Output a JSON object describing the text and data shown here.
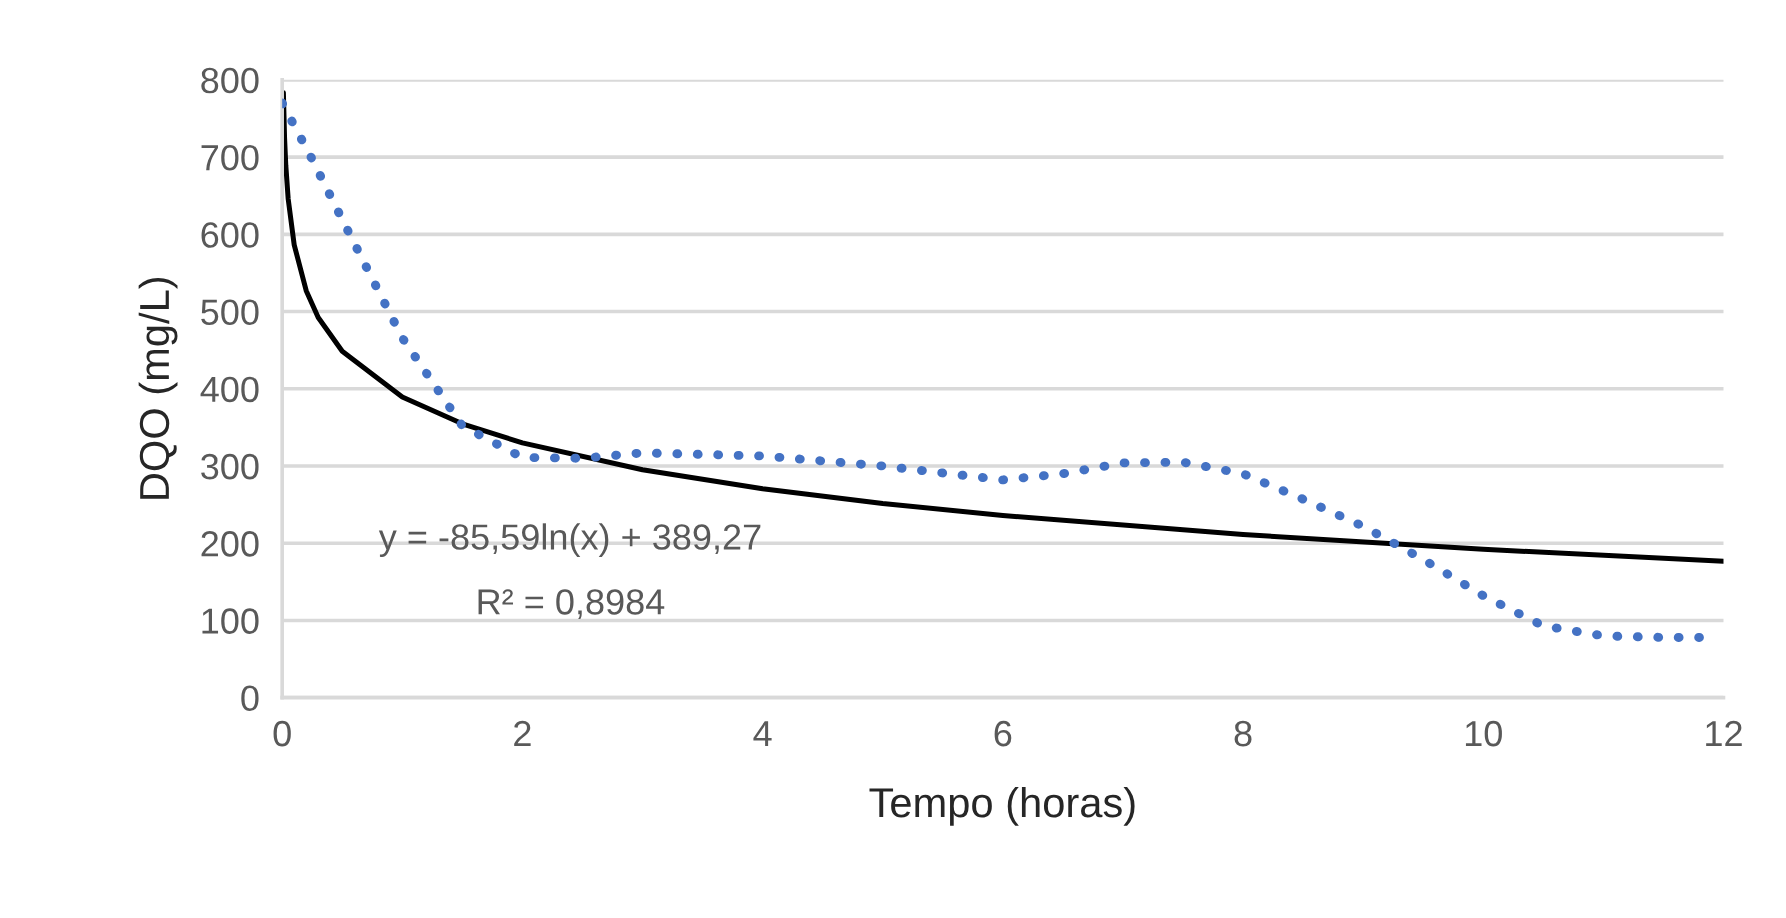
{
  "chart_data": {
    "type": "line",
    "xlabel": "Tempo (horas)",
    "ylabel": "DQO (mg/L)",
    "xlim": [
      0,
      12
    ],
    "xticks": [
      0,
      2,
      4,
      6,
      8,
      10,
      12
    ],
    "ylim": [
      0,
      800
    ],
    "yticks": [
      0,
      100,
      200,
      300,
      400,
      500,
      600,
      700,
      800
    ],
    "grid": "y",
    "legend": false,
    "series": [
      {
        "color": "#4472c4",
        "line_style": "dotted",
        "x": [
          0,
          0.25,
          0.5,
          1,
          1.5,
          2,
          2.5,
          3,
          4,
          5,
          6,
          6.5,
          7,
          7.5,
          8,
          8.5,
          9,
          9.5,
          10,
          10.5,
          11,
          11.5,
          11.8
        ],
        "values": [
          770,
          697,
          619,
          466,
          352,
          311,
          310,
          317,
          313,
          300,
          282,
          290,
          304,
          305,
          290,
          257,
          222,
          179,
          132,
          93,
          80,
          78,
          78
        ]
      },
      {
        "color": "#000000",
        "line_style": "solid",
        "x": [
          0.01,
          0.02,
          0.03,
          0.05,
          0.1,
          0.2,
          0.3,
          0.5,
          1,
          1.5,
          2,
          3,
          4,
          5,
          6,
          8,
          10,
          12
        ],
        "values": [
          783.4,
          724.1,
          689.4,
          645.7,
          586.4,
          527.0,
          492.3,
          448.6,
          389.3,
          354.6,
          330.0,
          295.2,
          270.6,
          251.5,
          235.9,
          211.3,
          192.2,
          176.6
        ]
      }
    ],
    "annotations": [
      "y = -85,59ln(x) + 389,27",
      "R² = 0,8984"
    ]
  }
}
